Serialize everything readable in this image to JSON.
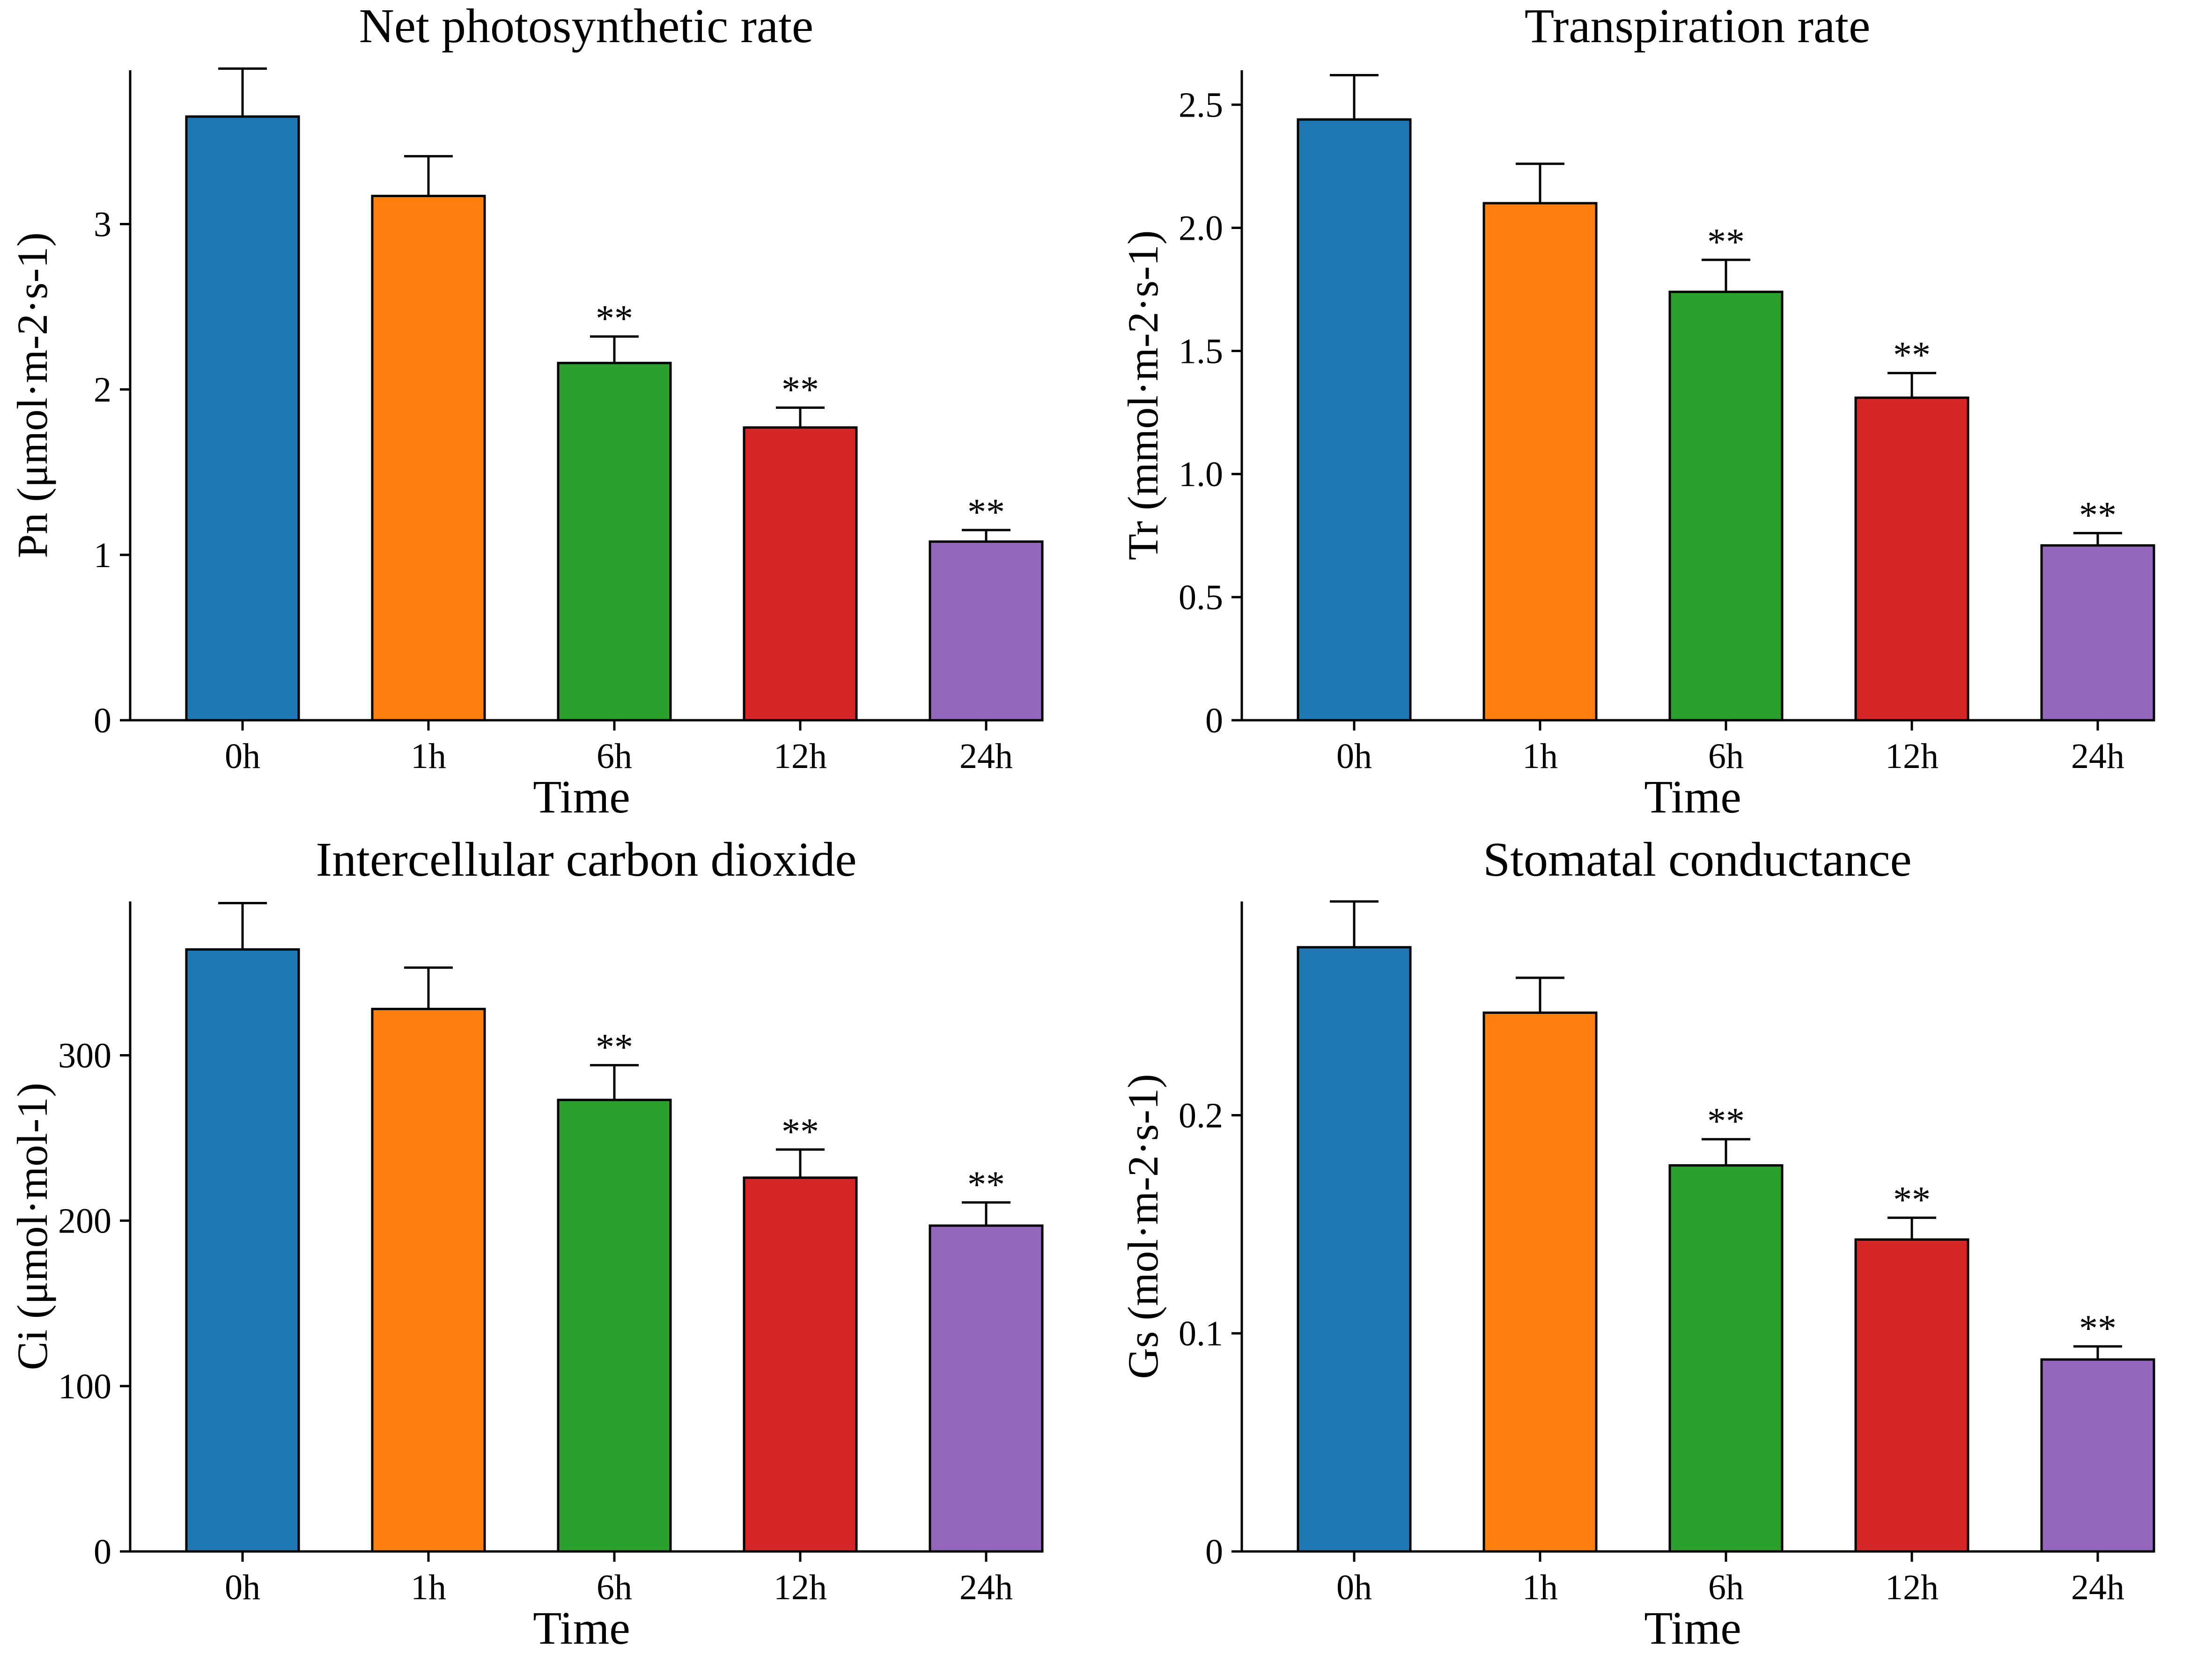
{
  "chart_data": [
    {
      "type": "bar",
      "title": "Net photosynthetic rate",
      "xlabel": "Time",
      "ylabel": "Pn (μmol·m-2·s-1)",
      "categories": [
        "0h",
        "1h",
        "6h",
        "12h",
        "24h"
      ],
      "values": [
        3.65,
        3.17,
        2.16,
        1.77,
        1.08
      ],
      "errors": [
        0.29,
        0.24,
        0.16,
        0.12,
        0.07
      ],
      "significance": [
        "",
        "",
        "**",
        "**",
        "**"
      ],
      "colors": [
        "#1f77b4",
        "#ff7f0e",
        "#2ca02c",
        "#d62728",
        "#9467bd"
      ],
      "ylim": [
        0,
        3.93
      ],
      "yticks": [
        0,
        1,
        2,
        3
      ],
      "ytick_labels": [
        "0",
        "1",
        "2",
        "3"
      ]
    },
    {
      "type": "bar",
      "title": "Transpiration rate",
      "xlabel": "Time",
      "ylabel": "Tr (mmol·m-2·s-1)",
      "categories": [
        "0h",
        "1h",
        "6h",
        "12h",
        "24h"
      ],
      "values": [
        2.44,
        2.1,
        1.74,
        1.31,
        0.71
      ],
      "errors": [
        0.18,
        0.16,
        0.13,
        0.1,
        0.05
      ],
      "significance": [
        "",
        "",
        "**",
        "**",
        "**"
      ],
      "colors": [
        "#1f77b4",
        "#ff7f0e",
        "#2ca02c",
        "#d62728",
        "#9467bd"
      ],
      "ylim": [
        0,
        2.64
      ],
      "yticks": [
        0,
        0.5,
        1.0,
        1.5,
        2.0,
        2.5
      ],
      "ytick_labels": [
        "0",
        "0.5",
        "1.0",
        "1.5",
        "2.0",
        "2.5"
      ]
    },
    {
      "type": "bar",
      "title": "Intercellular carbon dioxide",
      "xlabel": "Time",
      "ylabel": "Ci (μmol·mol-1)",
      "categories": [
        "0h",
        "1h",
        "6h",
        "12h",
        "24h"
      ],
      "values": [
        364,
        328,
        273,
        226,
        197
      ],
      "errors": [
        28,
        25,
        21,
        17,
        14
      ],
      "significance": [
        "",
        "",
        "**",
        "**",
        "**"
      ],
      "colors": [
        "#1f77b4",
        "#ff7f0e",
        "#2ca02c",
        "#d62728",
        "#9467bd"
      ],
      "ylim": [
        0,
        393
      ],
      "yticks": [
        0,
        100,
        200,
        300
      ],
      "ytick_labels": [
        "0",
        "100",
        "200",
        "300"
      ]
    },
    {
      "type": "bar",
      "title": "Stomatal conductance",
      "xlabel": "Time",
      "ylabel": "Gs (mol·m-2·s-1)",
      "categories": [
        "0h",
        "1h",
        "6h",
        "12h",
        "24h"
      ],
      "values": [
        0.277,
        0.247,
        0.177,
        0.143,
        0.088
      ],
      "errors": [
        0.021,
        0.016,
        0.012,
        0.01,
        0.006
      ],
      "significance": [
        "",
        "",
        "**",
        "**",
        "**"
      ],
      "colors": [
        "#1f77b4",
        "#ff7f0e",
        "#2ca02c",
        "#d62728",
        "#9467bd"
      ],
      "ylim": [
        0,
        0.298
      ],
      "yticks": [
        0,
        0.1,
        0.2
      ],
      "ytick_labels": [
        "0",
        "0.1",
        "0.2"
      ]
    }
  ]
}
